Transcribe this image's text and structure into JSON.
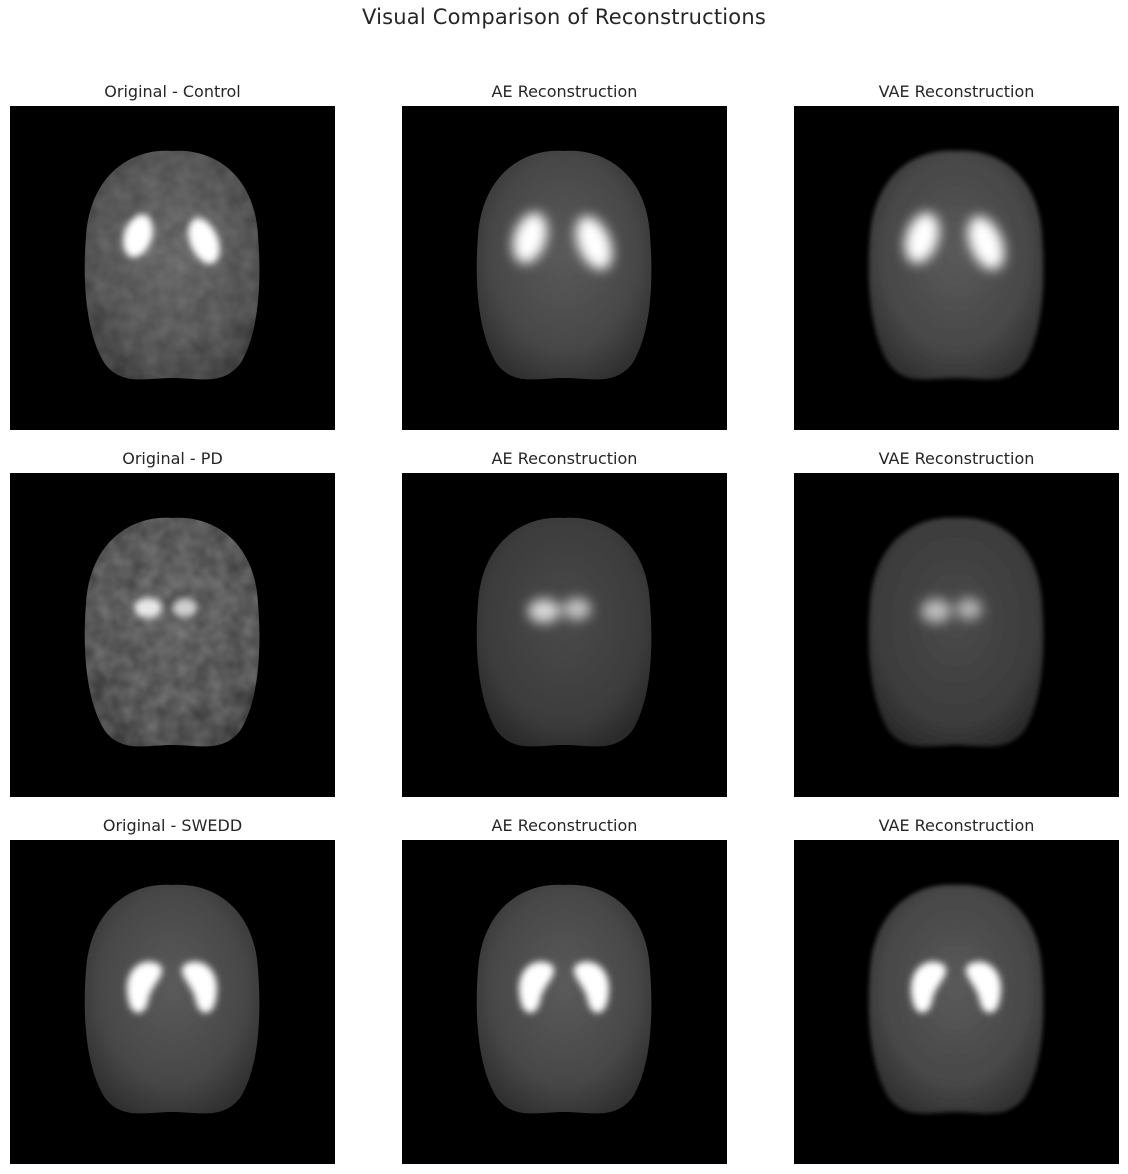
{
  "figure": {
    "title": "Visual Comparison of Reconstructions",
    "background": "#000000",
    "colormap": "gray"
  },
  "rows": [
    {
      "original_title": "Original - Control",
      "ae_title": "AE Reconstruction",
      "vae_title": "VAE Reconstruction"
    },
    {
      "original_title": "Original - PD",
      "ae_title": "AE Reconstruction",
      "vae_title": "VAE Reconstruction"
    },
    {
      "original_title": "Original - SWEDD",
      "ae_title": "AE Reconstruction",
      "vae_title": "VAE Reconstruction"
    }
  ]
}
